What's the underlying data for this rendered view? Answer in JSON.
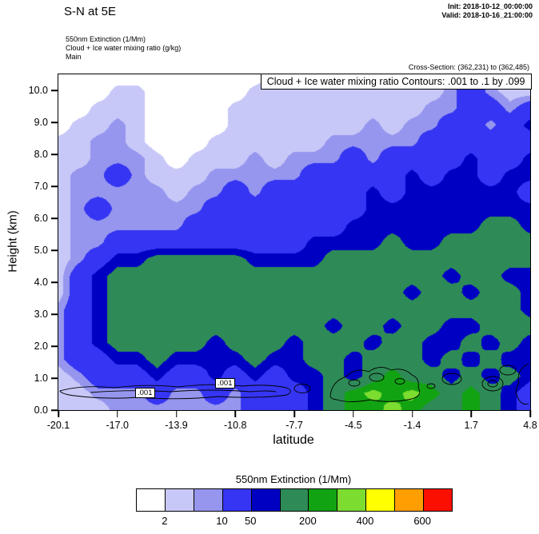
{
  "header": {
    "title": "S-N at 5E",
    "init_line": "Init: 2018-10-12_00:00:00",
    "valid_line": "Valid: 2018-10-16_21:00:00",
    "field_lines": [
      "550nm Extinction  (1/Mm)",
      "Cloud + Ice water mixing ratio  (g/kg)",
      "Main"
    ],
    "cross_section": "Cross-Section: (362,231) to (362,485)"
  },
  "plot": {
    "inner_title": "Cloud + Ice water mixing ratio Contours: .001 to .1 by .099",
    "contour_labels": [
      ".001",
      ".001"
    ]
  },
  "legend": {
    "title": "550nm Extinction  (1/Mm)",
    "tick_labels": [
      "2",
      "10",
      "50",
      "200",
      "400",
      "600"
    ],
    "tick_values": [
      2,
      10,
      50,
      200,
      400,
      600
    ],
    "tick_boundary_indices": [
      1,
      3,
      4,
      6,
      8,
      10
    ]
  },
  "chart_data": {
    "type": "heatmap",
    "title": "S-N at 5E",
    "xlabel": "latitude",
    "ylabel": "Height (km)",
    "x_ticks": [
      "-20.1",
      "-17.0",
      "-13.9",
      "-10.8",
      "-7.7",
      "-4.5",
      "-1.4",
      "1.7",
      "4.8"
    ],
    "y_ticks": [
      "0.0",
      "1.0",
      "2.0",
      "3.0",
      "4.0",
      "5.0",
      "6.0",
      "7.0",
      "8.0",
      "9.0",
      "10.0"
    ],
    "x_range": [
      -20.1,
      4.8
    ],
    "y_range_km": [
      0,
      10.5
    ],
    "legend_position": "bottom",
    "grid_lines": false,
    "levels": [
      2,
      5,
      10,
      50,
      100,
      200,
      300,
      400,
      500,
      600
    ],
    "colors": [
      "#ffffff",
      "#c8c8f8",
      "#9696ef",
      "#3535f3",
      "#0000c3",
      "#2e8b57",
      "#12a312",
      "#7cdc30",
      "#ffff00",
      "#ff9e00",
      "#fb0f00"
    ],
    "units": "1/Mm",
    "overlay_contour_field": {
      "name": "Cloud + Ice water mixing ratio (g/kg)",
      "contour_range": ".001 to .1 by .099",
      "labels": [
        ".001",
        ".001"
      ]
    },
    "grid": {
      "comment": "Estimated 550nm extinction field (1/Mm); rows top (h=10.5 km) to bottom (h=0 km), cols lat -20.1 to 4.8",
      "lat_min": -20.1,
      "lat_max": 4.8,
      "h_min_km": 0,
      "h_max_km": 10.5,
      "values": [
        [
          1,
          1,
          1,
          1,
          1,
          1,
          1,
          1,
          1,
          1,
          1,
          3,
          3,
          3,
          3,
          3,
          3,
          3,
          3,
          3,
          7,
          25,
          7,
          3,
          3
        ],
        [
          1,
          1,
          1,
          3,
          3,
          1,
          1,
          1,
          1,
          1,
          3,
          3,
          3,
          3,
          3,
          3,
          3,
          3,
          3,
          3,
          7,
          25,
          7,
          3,
          3
        ],
        [
          1,
          1,
          3,
          3,
          3,
          1,
          1,
          1,
          1,
          3,
          3,
          3,
          3,
          3,
          3,
          3,
          3,
          3,
          3,
          7,
          7,
          25,
          25,
          7,
          25
        ],
        [
          1,
          3,
          3,
          7,
          3,
          1,
          1,
          1,
          1,
          3,
          3,
          3,
          3,
          3,
          3,
          3,
          7,
          3,
          7,
          7,
          25,
          25,
          7,
          25,
          70
        ],
        [
          3,
          3,
          7,
          7,
          3,
          1,
          1,
          1,
          3,
          3,
          3,
          3,
          3,
          3,
          7,
          7,
          7,
          7,
          7,
          25,
          25,
          25,
          25,
          25,
          25
        ],
        [
          3,
          3,
          7,
          7,
          7,
          3,
          1,
          3,
          3,
          3,
          7,
          3,
          7,
          7,
          7,
          25,
          7,
          25,
          25,
          25,
          25,
          70,
          25,
          25,
          70
        ],
        [
          3,
          7,
          7,
          25,
          7,
          3,
          3,
          3,
          7,
          7,
          7,
          7,
          7,
          25,
          25,
          25,
          25,
          25,
          70,
          25,
          70,
          70,
          25,
          70,
          70
        ],
        [
          3,
          7,
          7,
          7,
          7,
          7,
          3,
          7,
          7,
          25,
          7,
          25,
          25,
          25,
          25,
          25,
          70,
          25,
          70,
          70,
          70,
          70,
          70,
          70,
          25
        ],
        [
          3,
          7,
          25,
          7,
          7,
          7,
          7,
          7,
          25,
          25,
          25,
          25,
          25,
          25,
          25,
          25,
          70,
          70,
          70,
          70,
          70,
          70,
          70,
          70,
          70
        ],
        [
          3,
          7,
          7,
          7,
          7,
          7,
          7,
          25,
          25,
          25,
          25,
          25,
          25,
          25,
          25,
          70,
          70,
          70,
          70,
          70,
          70,
          70,
          150,
          150,
          70
        ],
        [
          3,
          7,
          7,
          25,
          25,
          25,
          25,
          25,
          25,
          25,
          25,
          25,
          25,
          70,
          70,
          70,
          70,
          150,
          70,
          70,
          150,
          150,
          150,
          150,
          150
        ],
        [
          3,
          7,
          25,
          70,
          70,
          150,
          150,
          150,
          150,
          150,
          70,
          70,
          70,
          70,
          150,
          150,
          150,
          150,
          150,
          150,
          150,
          150,
          150,
          150,
          150
        ],
        [
          3,
          25,
          70,
          150,
          150,
          150,
          150,
          150,
          150,
          150,
          150,
          150,
          150,
          150,
          150,
          150,
          150,
          150,
          150,
          150,
          70,
          150,
          150,
          70,
          70
        ],
        [
          3,
          25,
          70,
          150,
          150,
          150,
          150,
          150,
          150,
          150,
          150,
          150,
          150,
          150,
          150,
          150,
          150,
          150,
          70,
          150,
          150,
          70,
          150,
          150,
          70
        ],
        [
          7,
          25,
          70,
          150,
          150,
          150,
          150,
          150,
          150,
          150,
          150,
          150,
          150,
          150,
          150,
          150,
          150,
          150,
          150,
          150,
          150,
          150,
          150,
          150,
          70
        ],
        [
          7,
          25,
          70,
          150,
          150,
          150,
          150,
          150,
          150,
          150,
          150,
          150,
          150,
          150,
          70,
          150,
          150,
          70,
          150,
          150,
          70,
          70,
          150,
          150,
          150
        ],
        [
          7,
          25,
          70,
          150,
          150,
          150,
          150,
          150,
          70,
          150,
          150,
          150,
          70,
          150,
          150,
          150,
          70,
          150,
          150,
          70,
          70,
          150,
          70,
          150,
          70
        ],
        [
          7,
          25,
          25,
          70,
          70,
          150,
          70,
          70,
          70,
          70,
          150,
          70,
          70,
          150,
          150,
          70,
          150,
          150,
          150,
          70,
          150,
          70,
          150,
          70,
          70
        ],
        [
          3,
          7,
          25,
          25,
          25,
          70,
          25,
          25,
          70,
          25,
          70,
          25,
          70,
          70,
          150,
          70,
          150,
          250,
          150,
          150,
          70,
          150,
          70,
          150,
          70
        ],
        [
          3,
          3,
          7,
          7,
          7,
          25,
          7,
          7,
          25,
          7,
          25,
          25,
          25,
          70,
          150,
          250,
          350,
          250,
          350,
          250,
          150,
          250,
          150,
          70,
          25
        ],
        [
          3,
          3,
          3,
          7,
          7,
          7,
          7,
          7,
          7,
          7,
          25,
          25,
          25,
          70,
          150,
          250,
          250,
          350,
          250,
          150,
          150,
          250,
          150,
          70,
          25
        ]
      ]
    }
  }
}
